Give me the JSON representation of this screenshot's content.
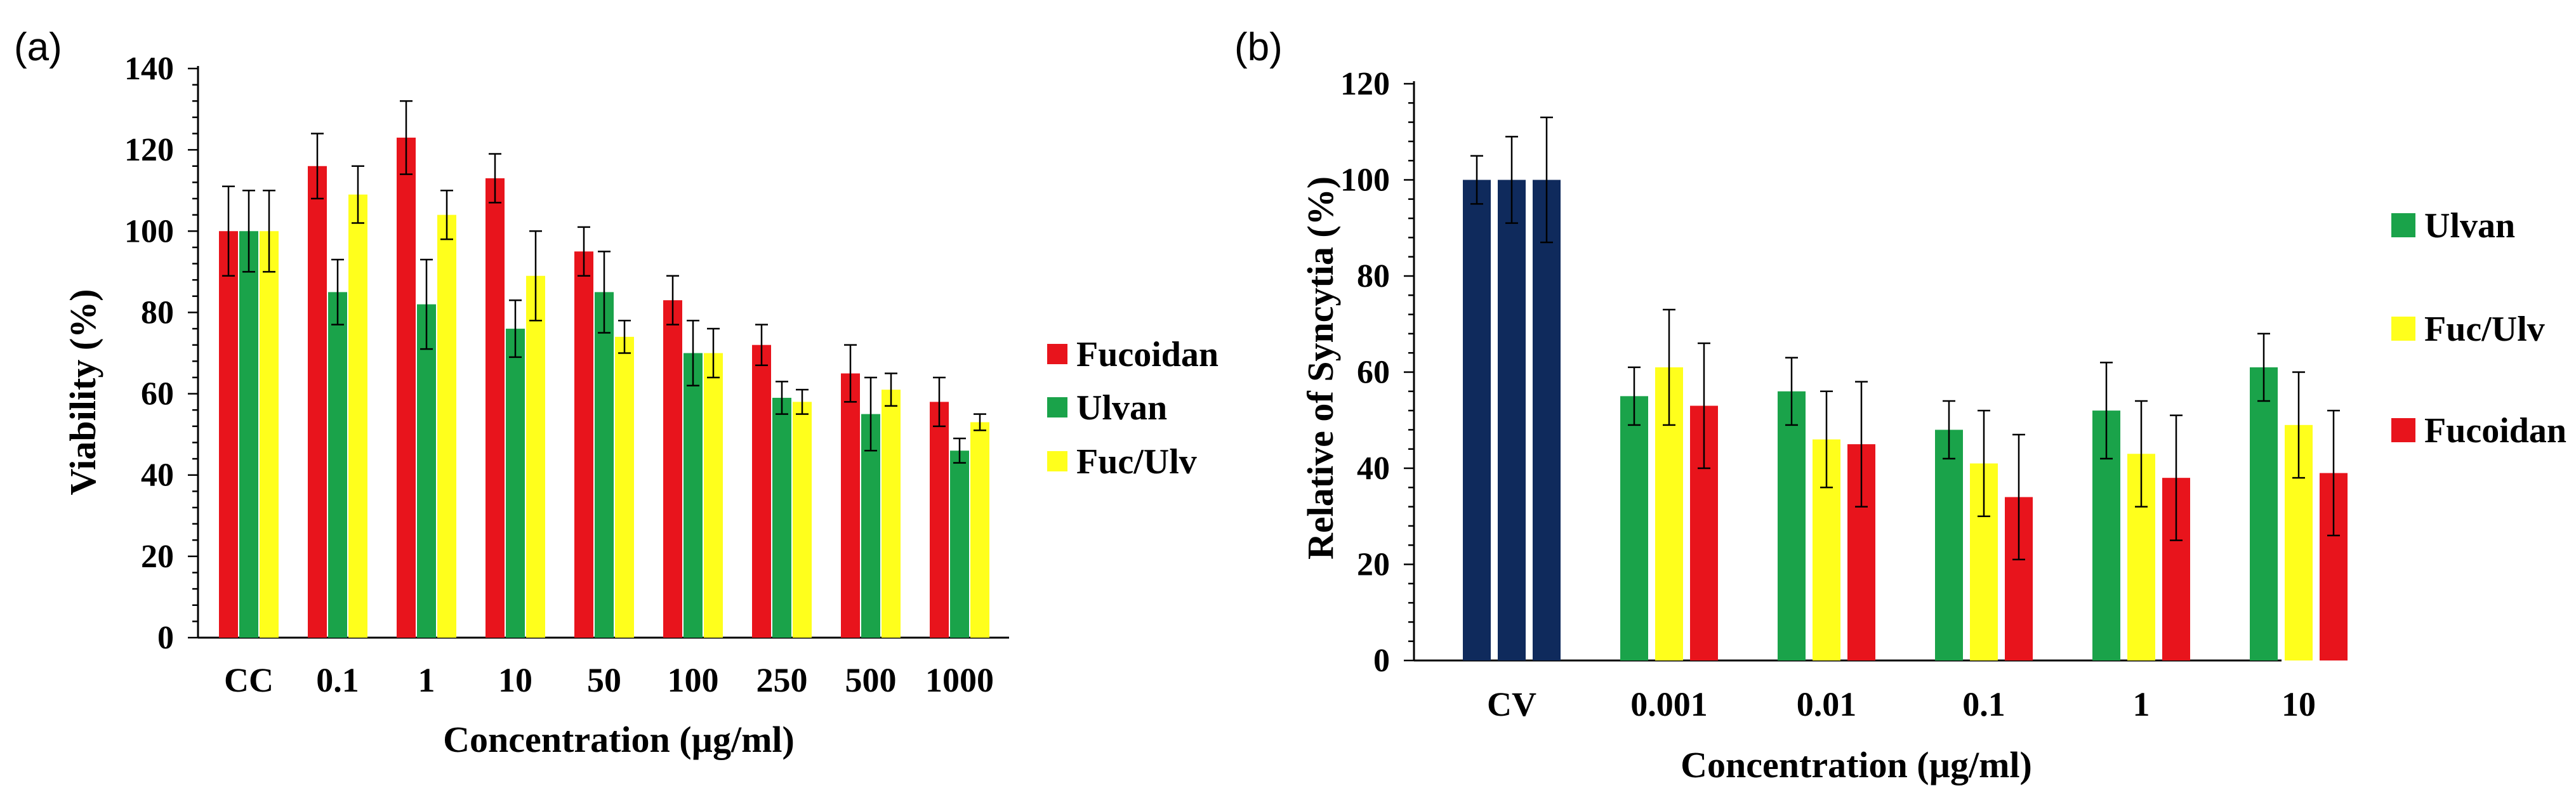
{
  "chart_data": [
    {
      "type": "bar",
      "panel_label": "(a)",
      "title": "",
      "xlabel": "Concentration (µg/ml)",
      "ylabel": "Viability (%)",
      "ylim": [
        0,
        140
      ],
      "yticks": [
        0,
        20,
        40,
        60,
        80,
        100,
        120,
        140
      ],
      "grid": false,
      "legend_position": "right",
      "categories": [
        "CC",
        "0.1",
        "1",
        "10",
        "50",
        "100",
        "250",
        "500",
        "1000"
      ],
      "series": [
        {
          "name": "Fucoidan",
          "color": "#e8141c",
          "values": [
            100,
            116,
            123,
            113,
            95,
            83,
            72,
            65,
            58
          ],
          "errors": [
            11,
            8,
            9,
            6,
            6,
            6,
            5,
            7,
            6
          ]
        },
        {
          "name": "Ulvan",
          "color": "#1aa34a",
          "values": [
            100,
            85,
            82,
            76,
            85,
            70,
            59,
            55,
            46
          ],
          "errors": [
            10,
            8,
            11,
            7,
            10,
            8,
            4,
            9,
            3
          ]
        },
        {
          "name": "Fuc/Ulv",
          "color": "#ffff1c",
          "values": [
            100,
            109,
            104,
            89,
            74,
            70,
            58,
            61,
            53
          ],
          "errors": [
            10,
            7,
            6,
            11,
            4,
            6,
            3,
            4,
            2
          ]
        }
      ]
    },
    {
      "type": "bar",
      "panel_label": "(b)",
      "title": "",
      "xlabel": "Concentration (µg/ml)",
      "ylabel": "Relative  of Syncytia (%)",
      "ylim": [
        0,
        120
      ],
      "yticks": [
        0,
        20,
        40,
        60,
        80,
        100,
        120
      ],
      "grid": false,
      "legend_position": "right",
      "categories": [
        "CV",
        "0.001",
        "0.01",
        "0.1",
        "1",
        "10"
      ],
      "control_color": "#0f2a5c",
      "series": [
        {
          "name": "Ulvan",
          "color": "#1aa34a",
          "values": [
            100,
            55,
            56,
            48,
            52,
            61
          ],
          "errors": [
            5,
            6,
            7,
            6,
            10,
            7
          ]
        },
        {
          "name": "Fuc/Ulv",
          "color": "#ffff1c",
          "values": [
            100,
            61,
            46,
            41,
            43,
            49
          ],
          "errors": [
            9,
            12,
            10,
            11,
            11,
            11
          ]
        },
        {
          "name": "Fucoidan",
          "color": "#e8141c",
          "values": [
            100,
            53,
            45,
            34,
            38,
            39
          ],
          "errors": [
            13,
            13,
            13,
            13,
            13,
            13
          ]
        }
      ]
    }
  ]
}
